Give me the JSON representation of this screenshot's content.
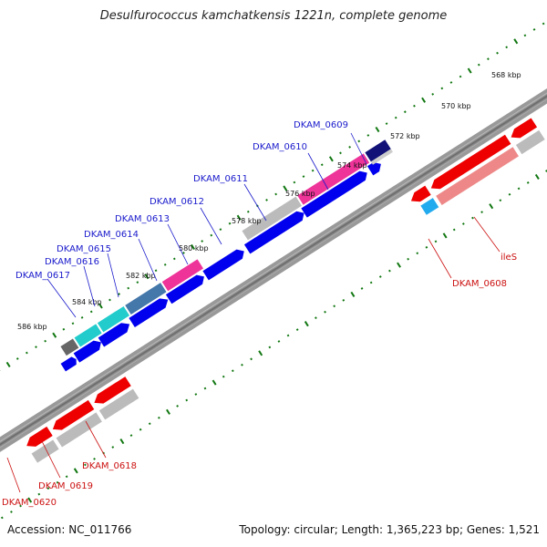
{
  "title": "Desulfurococcus kamchatkensis 1221n, complete genome",
  "footer": {
    "accession": "Accession: NC_011766",
    "topology": "Topology: circular; Length: 1,365,223 bp; Genes: 1,521"
  },
  "scale": {
    "ticks": [
      "568 kbp",
      "570 kbp",
      "572 kbp",
      "574 kbp",
      "576 kbp",
      "578 kbp",
      "580 kbp",
      "582 kbp",
      "584 kbp",
      "586 kbp"
    ]
  },
  "genes_forward": [
    {
      "label": "DKAM_0609"
    },
    {
      "label": "DKAM_0610"
    },
    {
      "label": "DKAM_0611"
    },
    {
      "label": "DKAM_0612"
    },
    {
      "label": "DKAM_0613"
    },
    {
      "label": "DKAM_0614"
    },
    {
      "label": "DKAM_0615"
    },
    {
      "label": "DKAM_0616"
    },
    {
      "label": "DKAM_0617"
    }
  ],
  "genes_reverse": [
    {
      "label": "ileS"
    },
    {
      "label": "DKAM_0608"
    },
    {
      "label": "DKAM_0618"
    },
    {
      "label": "DKAM_0619"
    },
    {
      "label": "DKAM_0620"
    }
  ],
  "colors": {
    "forward_arrow": "#0000ee",
    "reverse_arrow": "#ee0000",
    "backbone": "#888888",
    "tick": "#117711",
    "cog_pink": "#ee3399",
    "cog_cyan": "#22cccc",
    "cog_steel": "#4477aa",
    "cog_gray": "#aaaaaa",
    "cog_navy": "#111177",
    "cog_lightred": "#ee8888",
    "cog_lightblue": "#22aaee"
  }
}
